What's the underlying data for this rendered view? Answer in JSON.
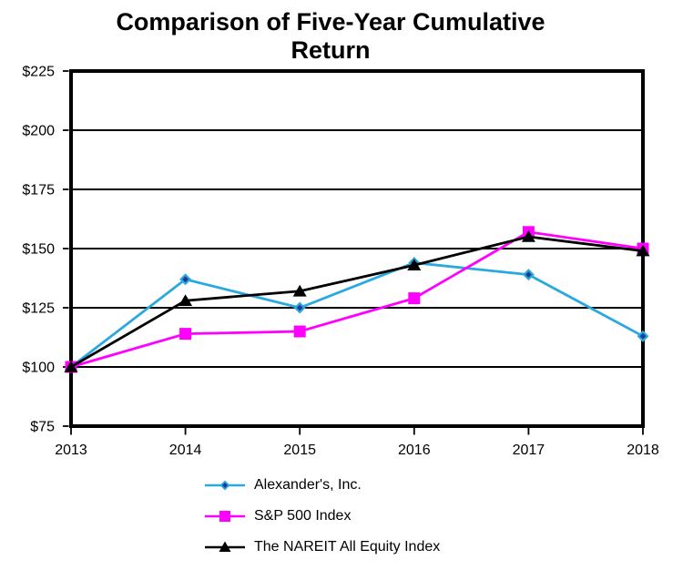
{
  "chart_data": {
    "type": "line",
    "title": "Comparison of Five-Year Cumulative Return",
    "categories": [
      "2013",
      "2014",
      "2015",
      "2016",
      "2017",
      "2018"
    ],
    "series": [
      {
        "name": "Alexander's, Inc.",
        "color": "#29A9DF",
        "marker": "diamond",
        "marker_inner_color": "#1F3A93",
        "values": [
          100,
          137,
          125,
          144,
          139,
          113
        ]
      },
      {
        "name": "S&P 500 Index",
        "color": "#FF00FF",
        "marker": "square",
        "values": [
          100,
          114,
          115,
          129,
          157,
          150
        ]
      },
      {
        "name": "The NAREIT All Equity Index",
        "color": "#000000",
        "marker": "triangle",
        "values": [
          100,
          128,
          132,
          143,
          155,
          149
        ]
      }
    ],
    "ylim": [
      75,
      225
    ],
    "y_ticks": [
      {
        "value": 75,
        "label": "$75"
      },
      {
        "value": 100,
        "label": "$100"
      },
      {
        "value": 125,
        "label": "$125"
      },
      {
        "value": 150,
        "label": "$150"
      },
      {
        "value": 175,
        "label": "$175"
      },
      {
        "value": 200,
        "label": "$200"
      },
      {
        "value": 225,
        "label": "$225"
      }
    ],
    "gridline_values": [
      100,
      125,
      150,
      175,
      200
    ],
    "axis_color": "#000000",
    "grid_on": true,
    "legend_position": "bottom"
  }
}
